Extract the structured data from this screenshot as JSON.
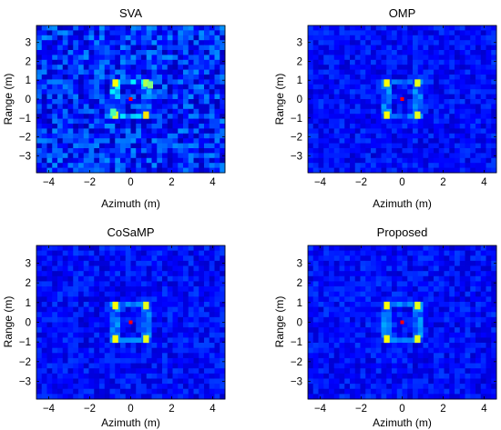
{
  "chart_data": [
    {
      "type": "heatmap",
      "title": "SVA",
      "xlabel": "Azimuth (m)",
      "ylabel": "Range (m)",
      "xlim": [
        -4.6,
        4.6
      ],
      "ylim": [
        -3.9,
        3.9
      ],
      "xticks": [
        -4,
        -2,
        0,
        2,
        4
      ],
      "yticks": [
        3,
        2,
        1,
        0,
        -1,
        -2,
        -3
      ],
      "colormap": "jet",
      "background_level": 0.16,
      "noise_level": 0.11,
      "peaks": [
        {
          "x": -0.75,
          "y": 0.85,
          "v": 0.62
        },
        {
          "x": 0.75,
          "y": 0.85,
          "v": 0.55
        },
        {
          "x": -0.75,
          "y": -0.85,
          "v": 0.6
        },
        {
          "x": 0.75,
          "y": -0.85,
          "v": 0.65
        },
        {
          "x": 0.95,
          "y": 0.75,
          "v": 0.5
        },
        {
          "x": -0.85,
          "y": -0.7,
          "v": 0.45
        }
      ],
      "center_marker": {
        "x": 0,
        "y": 0,
        "color": "#ff0000"
      }
    },
    {
      "type": "heatmap",
      "title": "OMP",
      "xlabel": "Azimuth (m)",
      "ylabel": "Range (m)",
      "xlim": [
        -4.6,
        4.6
      ],
      "ylim": [
        -3.9,
        3.9
      ],
      "xticks": [
        -4,
        -2,
        0,
        2,
        4
      ],
      "yticks": [
        3,
        2,
        1,
        0,
        -1,
        -2,
        -3
      ],
      "colormap": "jet",
      "background_level": 0.13,
      "noise_level": 0.06,
      "peaks": [
        {
          "x": -0.75,
          "y": 0.85,
          "v": 0.62
        },
        {
          "x": 0.75,
          "y": 0.85,
          "v": 0.6
        },
        {
          "x": -0.75,
          "y": -0.85,
          "v": 0.62
        },
        {
          "x": 0.75,
          "y": -0.85,
          "v": 0.6
        }
      ],
      "center_marker": {
        "x": 0,
        "y": 0,
        "color": "#ff0000"
      }
    },
    {
      "type": "heatmap",
      "title": "CoSaMP",
      "xlabel": "Azimuth (m)",
      "ylabel": "Range (m)",
      "xlim": [
        -4.6,
        4.6
      ],
      "ylim": [
        -3.9,
        3.9
      ],
      "xticks": [
        -4,
        -2,
        0,
        2,
        4
      ],
      "yticks": [
        3,
        2,
        1,
        0,
        -1,
        -2,
        -3
      ],
      "colormap": "jet",
      "background_level": 0.13,
      "noise_level": 0.06,
      "peaks": [
        {
          "x": -0.75,
          "y": 0.85,
          "v": 0.62
        },
        {
          "x": 0.75,
          "y": 0.85,
          "v": 0.6
        },
        {
          "x": -0.75,
          "y": -0.85,
          "v": 0.62
        },
        {
          "x": 0.75,
          "y": -0.85,
          "v": 0.6
        }
      ],
      "center_marker": {
        "x": 0,
        "y": 0,
        "color": "#ff0000"
      }
    },
    {
      "type": "heatmap",
      "title": "Proposed",
      "xlabel": "Azimuth (m)",
      "ylabel": "Range (m)",
      "xlim": [
        -4.6,
        4.6
      ],
      "ylim": [
        -3.9,
        3.9
      ],
      "xticks": [
        -4,
        -2,
        0,
        2,
        4
      ],
      "yticks": [
        3,
        2,
        1,
        0,
        -1,
        -2,
        -3
      ],
      "colormap": "jet",
      "background_level": 0.13,
      "noise_level": 0.06,
      "peaks": [
        {
          "x": -0.75,
          "y": 0.85,
          "v": 0.62
        },
        {
          "x": 0.75,
          "y": 0.85,
          "v": 0.6
        },
        {
          "x": -0.75,
          "y": -0.85,
          "v": 0.62
        },
        {
          "x": 0.75,
          "y": -0.85,
          "v": 0.6
        }
      ],
      "center_marker": {
        "x": 0,
        "y": 0,
        "color": "#ff0000"
      }
    }
  ]
}
